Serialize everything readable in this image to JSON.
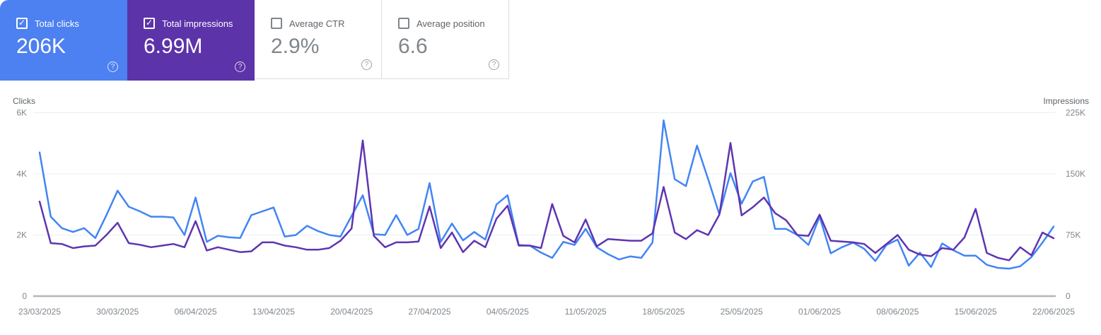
{
  "icons": {
    "check": "✓",
    "help": "?"
  },
  "colors": {
    "clicks_accent": "#4d80f0",
    "impressions_accent": "#5c33a8",
    "clicks_line": "#4285f4",
    "impressions_line": "#5e35b1",
    "gridline": "#eceef0",
    "axis_line": "#b2b6ba",
    "muted_text": "#80868b",
    "card_border": "#dadce0"
  },
  "cards": [
    {
      "label": "Total clicks",
      "value": "206K",
      "checked": true,
      "bg": "#4d80f0"
    },
    {
      "label": "Total impressions",
      "value": "6.99M",
      "checked": true,
      "bg": "#5c33a8"
    },
    {
      "label": "Average CTR",
      "value": "2.9%",
      "checked": false,
      "bg": ""
    },
    {
      "label": "Average position",
      "value": "6.6",
      "checked": false,
      "bg": ""
    }
  ],
  "chart_data": {
    "type": "line",
    "start_date": "23/03/2025",
    "end_date": "22/06/2025",
    "points_per_series": 92,
    "x_axis": {
      "labels": [
        "23/03/2025",
        "30/03/2025",
        "06/04/2025",
        "13/04/2025",
        "20/04/2025",
        "27/04/2025",
        "04/05/2025",
        "11/05/2025",
        "18/05/2025",
        "25/05/2025",
        "01/06/2025",
        "08/06/2025",
        "15/06/2025",
        "22/06/2025"
      ],
      "label_interval_days": 7
    },
    "left_axis": {
      "title": "Clicks",
      "ticks_top_to_bottom": [
        "6K",
        "4K",
        "2K",
        "0"
      ],
      "max": 6000
    },
    "right_axis": {
      "title": "Impressions",
      "ticks_top_to_bottom": [
        "225K",
        "150K",
        "75K",
        "0"
      ],
      "max": 225
    },
    "grid": "horizontal-only",
    "legend": "none",
    "series": [
      {
        "name": "Total clicks",
        "axis": "left",
        "color": "#4285f4",
        "max": 6000,
        "values": [
          4700,
          2600,
          2225,
          2100,
          2225,
          1900,
          2650,
          3450,
          2925,
          2775,
          2600,
          2600,
          2575,
          2000,
          3225,
          1775,
          1975,
          1925,
          1900,
          2650,
          2775,
          2900,
          1950,
          2000,
          2300,
          2125,
          2000,
          1950,
          2625,
          3300,
          2025,
          2000,
          2650,
          2000,
          2200,
          3700,
          1775,
          2375,
          1825,
          2100,
          1850,
          3000,
          3300,
          1675,
          1650,
          1425,
          1250,
          1775,
          1675,
          2200,
          1600,
          1375,
          1200,
          1300,
          1250,
          1750,
          5750,
          3825,
          3600,
          4925,
          3825,
          2675,
          4025,
          3025,
          3750,
          3900,
          2200,
          2200,
          2000,
          1675,
          2600,
          1400,
          1600,
          1750,
          1550,
          1150,
          1675,
          1850,
          1000,
          1425,
          950,
          1725,
          1500,
          1325,
          1325,
          1025,
          925,
          900,
          975,
          1275,
          1750,
          2275
        ]
      },
      {
        "name": "Total impressions",
        "axis": "right",
        "color": "#5e35b1",
        "max": 225,
        "unit": "thousands",
        "values": [
          116,
          65,
          64,
          59,
          61,
          62,
          75,
          90,
          65,
          63,
          60,
          62,
          64,
          60,
          92,
          56,
          60,
          57,
          54,
          55,
          66,
          66,
          62,
          60,
          57,
          57,
          59,
          68,
          83,
          191,
          74,
          60,
          66,
          66,
          67,
          110,
          59,
          78,
          54,
          68,
          60,
          95,
          111,
          62,
          62,
          59,
          113,
          74,
          66,
          94,
          61,
          70,
          69,
          68,
          68,
          77,
          134,
          78,
          70,
          81,
          75,
          100,
          188,
          99,
          109,
          121,
          102,
          93,
          75,
          74,
          100,
          68,
          67,
          66,
          64,
          53,
          64,
          75,
          57,
          51,
          49,
          59,
          57,
          72,
          107,
          53,
          47,
          44,
          60,
          50,
          78,
          71
        ]
      }
    ]
  }
}
